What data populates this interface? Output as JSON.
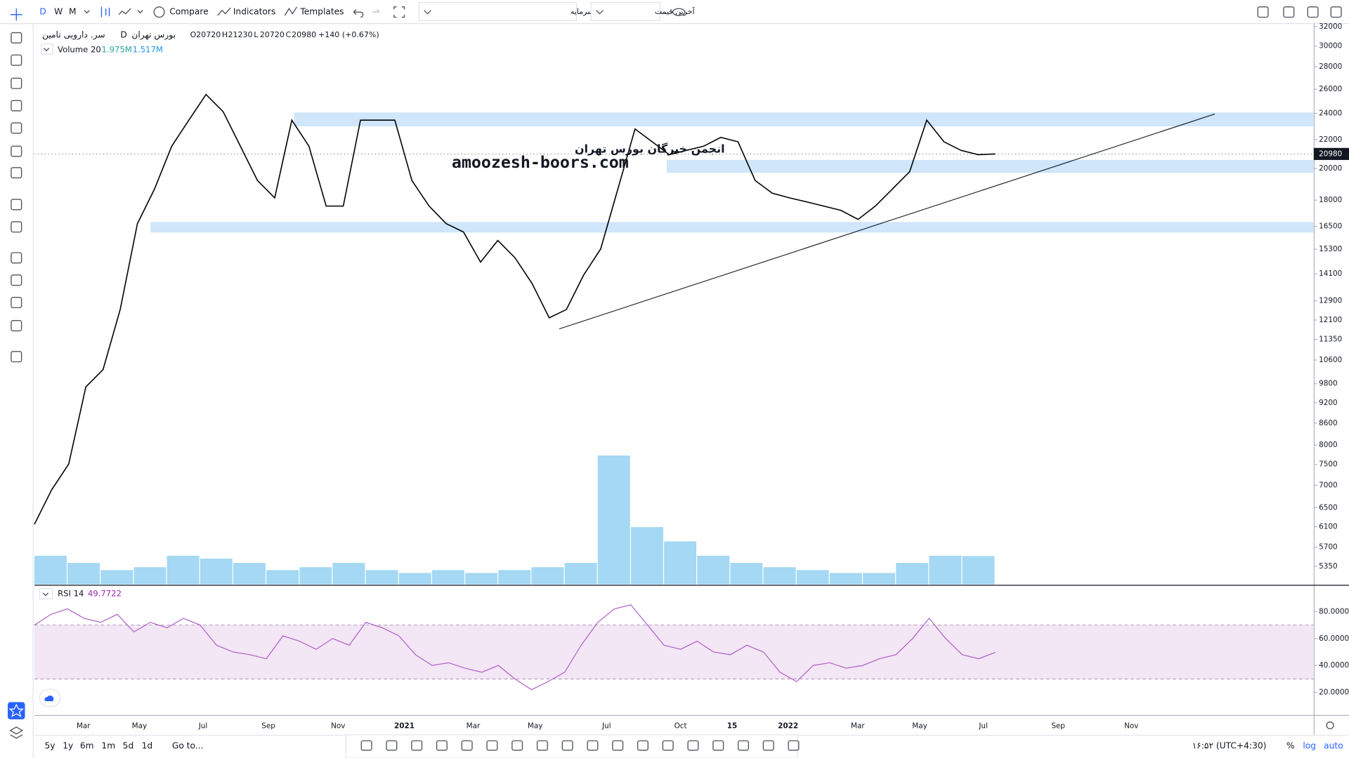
{
  "toolbar": {
    "intervals": [
      "D",
      "W",
      "M"
    ],
    "compare": "Compare",
    "indicators": "Indicators",
    "templates": "Templates",
    "dropdown1": "سود نقدی و افزایش سرمایه",
    "dropdown2": "آخرین قیمت"
  },
  "legend": {
    "symbol": "سر. دارویی تامین",
    "interval": "D",
    "exchange": "بورس تهران",
    "ohlc": [
      {
        "label": "O",
        "value": 20720
      },
      {
        "label": "H",
        "value": 21230
      },
      {
        "label": "L",
        "value": 20720
      },
      {
        "label": "C",
        "value": 20980
      }
    ],
    "change": "+140 (+0.67%)",
    "volume_label": "Volume 20",
    "volume_values": [
      "1.975M",
      "1.517M"
    ],
    "rsi_label": "RSI 14",
    "rsi_value": "49.7722"
  },
  "watermark": {
    "line1": "انجمن خبرگان بورس تهران",
    "line2": "amoozesh-boors.com"
  },
  "chart_data": [
    {
      "type": "line",
      "log_scale": true,
      "color": "#000000",
      "series": [
        {
          "values": [
            6150,
            6890,
            7510,
            9700,
            10270,
            12530,
            16650,
            18680,
            21530,
            23470,
            25550,
            24130,
            21530,
            19210,
            18140,
            23470,
            21530,
            17650,
            17650,
            23470,
            23470,
            23470,
            19210,
            17650,
            16650,
            16200,
            14660,
            15750,
            14880,
            13660,
            12190,
            12530,
            14040,
            15320,
            18680,
            22790,
            21840,
            20930,
            21230,
            21530,
            22170,
            21840,
            19210,
            18420,
            18140,
            17900,
            17650,
            17400,
            16890,
            17650,
            18680,
            19780,
            23470,
            21840,
            21230,
            20930,
            20980
          ]
        }
      ],
      "last_price": 20980,
      "ylim": [
        5040,
        32540
      ],
      "yticks": [
        32000,
        30000,
        28000,
        26000,
        24000,
        22000,
        20980,
        20000,
        18000,
        16500,
        15300,
        14100,
        12900,
        12100,
        11350,
        10600,
        9800,
        9200,
        8600,
        8000,
        7500,
        7000,
        6500,
        6100,
        5700,
        5350
      ],
      "x_labels": [
        "Mar",
        "May",
        "Jul",
        "Sep",
        "Nov",
        "2021",
        "Mar",
        "May",
        "Jul",
        "Oct",
        "15",
        "2022",
        "Mar",
        "May",
        "Jul",
        "Sep",
        "Nov"
      ],
      "zones": [
        {
          "from": 22990,
          "to": 24070,
          "color": "#cfe6fb"
        },
        {
          "from": 19710,
          "to": 20570,
          "color": "#cfe6fb"
        },
        {
          "from": 16170,
          "to": 16740,
          "color": "#cfe6fb"
        }
      ],
      "trend_line": [
        11750,
        23950
      ],
      "volume": {
        "color": "#7ec8f0",
        "ylim": [
          0,
          12
        ],
        "values": [
          2,
          1.5,
          1,
          1.2,
          2,
          1.8,
          1.5,
          1,
          1.2,
          1.5,
          1,
          0.8,
          1,
          0.8,
          1,
          1.2,
          1.5,
          9,
          4,
          3,
          2,
          1.5,
          1.2,
          1,
          0.8,
          0.8,
          1.5,
          2,
          1.975
        ]
      }
    },
    {
      "type": "line",
      "color": "#b060c8",
      "band": [
        30,
        70
      ],
      "band_color": "#f3e6f5",
      "series": [
        {
          "values": [
            70,
            78,
            82,
            75,
            72,
            78,
            65,
            72,
            68,
            75,
            70,
            55,
            50,
            48,
            45,
            62,
            58,
            52,
            60,
            55,
            72,
            68,
            62,
            48,
            40,
            42,
            38,
            35,
            40,
            30,
            22,
            28,
            35,
            55,
            72,
            82,
            85,
            70,
            55,
            52,
            58,
            50,
            48,
            55,
            50,
            35,
            28,
            40,
            42,
            38,
            40,
            45,
            48,
            60,
            75,
            60,
            48,
            45,
            49.7722
          ]
        }
      ],
      "ylim": [
        3.2,
        98.3
      ],
      "yticks": [
        {
          "value": 80,
          "label": "80.0000"
        },
        {
          "value": 60,
          "label": "60.0000"
        },
        {
          "value": 40,
          "label": "40.0000"
        },
        {
          "value": 20,
          "label": "20.0000"
        }
      ]
    }
  ],
  "bottom": {
    "ranges": [
      "5y",
      "1y",
      "6m",
      "1m",
      "5d",
      "1d"
    ],
    "goto": "Go to...",
    "clock": "۱۶:۵۲ (UTC+4:30)",
    "percent": "%",
    "log": "log",
    "auto": "auto"
  }
}
